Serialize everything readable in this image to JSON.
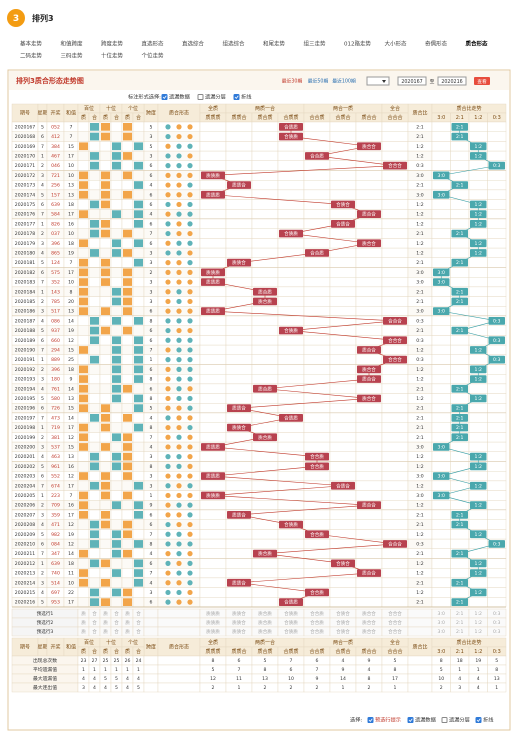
{
  "header": {
    "logo": "3",
    "title": "排列3"
  },
  "nav": [
    "基本走势",
    "和值跨度",
    "跨度走势",
    "直选形态",
    "直选综合",
    "组选综合",
    "和尾走势",
    "组三走势",
    "012路走势",
    "大小形态",
    "奇偶形态",
    "质合形态",
    "二码走势",
    "三码走势",
    "十位走势",
    "个位走势"
  ],
  "panel": {
    "title": "排列3质合形态走势图",
    "quick": [
      "最近30期",
      "最近50期",
      "最近100期"
    ],
    "from": "2020167",
    "sep": "至",
    "to": "2020216",
    "go": "查看"
  },
  "options": {
    "label": "标注形式选择:",
    "items": [
      {
        "text": "遗漏数据",
        "checked": true
      },
      {
        "text": "遗漏分层",
        "checked": false
      },
      {
        "text": "折线",
        "checked": true
      }
    ]
  },
  "columns": {
    "issue": "期号",
    "week": "星期",
    "draw": "开奖",
    "sum": "和值",
    "digits": [
      "百位",
      "十位",
      "个位"
    ],
    "prime": "质",
    "composite": "合",
    "span": "跨度",
    "form": "质合形态",
    "groups": [
      "全质",
      "两质一合",
      "两合一质",
      "全合"
    ],
    "forms": [
      "质质质",
      "质质合",
      "质合质",
      "合质质",
      "合合质",
      "合质合",
      "质合合",
      "合合合"
    ],
    "ratio": "质合比",
    "trend": "质合比走势",
    "ratios": [
      "3:0",
      "2:1",
      "1:2",
      "0:3"
    ]
  },
  "rows": [
    [
      "2020167",
      5,
      "052",
      7,
      5,
      "合质质",
      "2:1"
    ],
    [
      "2020168",
      6,
      "412",
      7,
      3,
      "合质质",
      "2:1"
    ],
    [
      "2020169",
      7,
      "384",
      15,
      5,
      "质合合",
      "1:2"
    ],
    [
      "2020170",
      1,
      "467",
      17,
      3,
      "合合质",
      "1:2"
    ],
    [
      "2020171",
      2,
      "046",
      10,
      6,
      "合合合",
      "0:3"
    ],
    [
      "2020172",
      3,
      "721",
      10,
      6,
      "质质质",
      "3:0"
    ],
    [
      "2020173",
      4,
      "256",
      13,
      4,
      "质质合",
      "2:1"
    ],
    [
      "2020174",
      5,
      "157",
      13,
      6,
      "质质质",
      "3:0"
    ],
    [
      "2020175",
      6,
      "639",
      18,
      6,
      "合质合",
      "1:2"
    ],
    [
      "2020176",
      7,
      "584",
      17,
      4,
      "质合合",
      "1:2"
    ],
    [
      "2020177",
      1,
      "826",
      16,
      6,
      "合质合",
      "1:2"
    ],
    [
      "2020178",
      2,
      "037",
      10,
      7,
      "合质质",
      "2:1"
    ],
    [
      "2020179",
      3,
      "396",
      18,
      6,
      "质合合",
      "1:2"
    ],
    [
      "2020180",
      4,
      "865",
      19,
      3,
      "合合质",
      "1:2"
    ],
    [
      "2020181",
      5,
      "124",
      7,
      3,
      "质质合",
      "2:1"
    ],
    [
      "2020182",
      6,
      "575",
      17,
      2,
      "质质质",
      "3:0"
    ],
    [
      "2020183",
      7,
      "352",
      10,
      3,
      "质质质",
      "3:0"
    ],
    [
      "2020184",
      1,
      "143",
      8,
      3,
      "质合质",
      "2:1"
    ],
    [
      "2020185",
      2,
      "785",
      20,
      3,
      "质合质",
      "2:1"
    ],
    [
      "2020186",
      3,
      "517",
      13,
      6,
      "质质质",
      "3:0"
    ],
    [
      "2020187",
      4,
      "086",
      14,
      8,
      "合合合",
      "0:3"
    ],
    [
      "2020188",
      5,
      "937",
      19,
      6,
      "合质质",
      "2:1"
    ],
    [
      "2020189",
      6,
      "660",
      12,
      6,
      "合合合",
      "0:3"
    ],
    [
      "2020190",
      7,
      "294",
      15,
      7,
      "质合合",
      "1:2"
    ],
    [
      "2020191",
      1,
      "889",
      25,
      1,
      "合合合",
      "0:3"
    ],
    [
      "2020192",
      2,
      "396",
      18,
      6,
      "质合合",
      "1:2"
    ],
    [
      "2020193",
      3,
      "180",
      9,
      8,
      "质合合",
      "1:2"
    ],
    [
      "2020194",
      4,
      "761",
      14,
      6,
      "质合质",
      "2:1"
    ],
    [
      "2020195",
      5,
      "580",
      13,
      8,
      "质合合",
      "1:2"
    ],
    [
      "2020196",
      6,
      "726",
      15,
      5,
      "质质合",
      "2:1"
    ],
    [
      "2020197",
      7,
      "473",
      14,
      4,
      "合质质",
      "2:1"
    ],
    [
      "2020198",
      1,
      "719",
      17,
      8,
      "质质合",
      "2:1"
    ],
    [
      "2020199",
      2,
      "381",
      12,
      7,
      "质合质",
      "2:1"
    ],
    [
      "2020200",
      3,
      "537",
      15,
      4,
      "质质质",
      "3:0"
    ],
    [
      "2020201",
      4,
      "463",
      13,
      3,
      "合合质",
      "1:2"
    ],
    [
      "2020202",
      5,
      "961",
      16,
      8,
      "合合质",
      "1:2"
    ],
    [
      "2020203",
      6,
      "552",
      12,
      3,
      "质质质",
      "3:0"
    ],
    [
      "2020204",
      7,
      "674",
      17,
      3,
      "合质合",
      "1:2"
    ],
    [
      "2020205",
      1,
      "223",
      7,
      1,
      "质质质",
      "3:0"
    ],
    [
      "2020206",
      2,
      "709",
      16,
      9,
      "质合合",
      "1:2"
    ],
    [
      "2020207",
      3,
      "359",
      17,
      6,
      "质质合",
      "2:1"
    ],
    [
      "2020208",
      4,
      "471",
      12,
      6,
      "合质质",
      "2:1"
    ],
    [
      "2020209",
      5,
      "982",
      19,
      7,
      "合合质",
      "1:2"
    ],
    [
      "2020210",
      6,
      "084",
      12,
      8,
      "合合合",
      "0:3"
    ],
    [
      "2020211",
      7,
      "347",
      14,
      4,
      "质合质",
      "2:1"
    ],
    [
      "2020212",
      1,
      "639",
      18,
      6,
      "合质合",
      "1:2"
    ],
    [
      "2020213",
      2,
      "740",
      11,
      7,
      "质合合",
      "1:2"
    ],
    [
      "2020214",
      3,
      "514",
      10,
      4,
      "质质合",
      "2:1"
    ],
    [
      "2020215",
      4,
      "697",
      22,
      3,
      "合合质",
      "1:2"
    ],
    [
      "2020216",
      5,
      "953",
      17,
      6,
      "合质质",
      "2:1"
    ]
  ],
  "preselect": [
    "预选行1",
    "预选行2",
    "预选行3"
  ],
  "stats": {
    "labels": [
      "出现总次数",
      "平均遗漏值",
      "最大遗漏值",
      "最大连出值"
    ],
    "values": [
      [
        23,
        27,
        25,
        25,
        26,
        24,
        8,
        6,
        5,
        7,
        6,
        4,
        9,
        5,
        8,
        18,
        19,
        5
      ],
      [
        1,
        1,
        1,
        1,
        1,
        1,
        5,
        7,
        8,
        6,
        7,
        9,
        4,
        8,
        5,
        1,
        1,
        8
      ],
      [
        4,
        4,
        5,
        5,
        4,
        4,
        12,
        11,
        13,
        10,
        9,
        14,
        8,
        17,
        10,
        4,
        4,
        13
      ],
      [
        3,
        4,
        4,
        5,
        4,
        5,
        2,
        1,
        2,
        2,
        2,
        1,
        2,
        1,
        2,
        3,
        4,
        1
      ]
    ]
  },
  "footer": {
    "label": "选择:",
    "items": [
      {
        "text": "预选行提示",
        "checked": true
      },
      {
        "text": "遗漏数据",
        "checked": true
      },
      {
        "text": "遗漏分层",
        "checked": false
      },
      {
        "text": "折线",
        "checked": true
      }
    ]
  }
}
